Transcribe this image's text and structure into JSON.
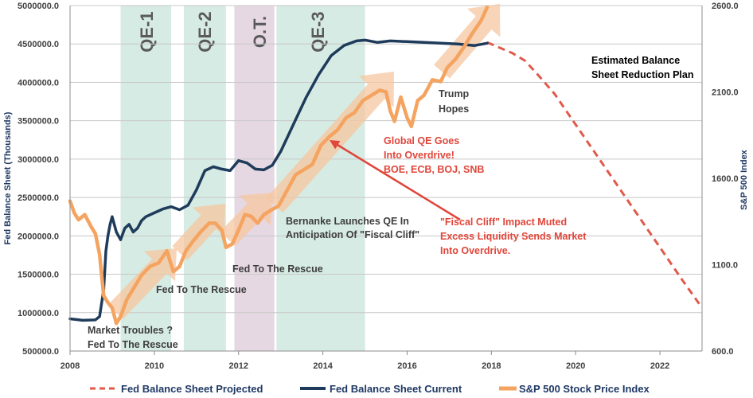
{
  "colors": {
    "projected": "#e05a4a",
    "current": "#1f3b5c",
    "sp500": "#f4a460",
    "band_qe": "#d6ebe3",
    "band_ot": "#e6d8e3",
    "arrow_fill": "#f5c7a0",
    "annotation_red": "#e0463a",
    "annotation_dark": "#3d3d3d",
    "axis_text": "#404040",
    "grid": "#c8c8c8"
  },
  "chart_data": {
    "type": "line",
    "title": "",
    "xlabel": "",
    "ylabel": "Fed Balance Sheet (Thousands)",
    "y2label": "S&P 500 Index",
    "xlim": [
      2008,
      2023
    ],
    "ylim": [
      500000,
      5000000
    ],
    "y2lim": [
      600,
      2600
    ],
    "x_ticks": [
      2008,
      2010,
      2012,
      2014,
      2016,
      2018,
      2020,
      2022
    ],
    "x_tick_labels": [
      "2008",
      "2010",
      "2012",
      "2014",
      "2016",
      "2018",
      "2020",
      "2022"
    ],
    "y_ticks": [
      500000,
      1000000,
      1500000,
      2000000,
      2500000,
      3000000,
      3500000,
      4000000,
      4500000,
      5000000
    ],
    "y_tick_labels": [
      "500000.0",
      "1000000.0",
      "1500000.0",
      "2000000.0",
      "2500000.0",
      "3000000.0",
      "3500000.0",
      "4000000.0",
      "4500000.0",
      "5000000.0"
    ],
    "y2_ticks": [
      600,
      1100,
      1600,
      2100,
      2600
    ],
    "y2_tick_labels": [
      "600.0",
      "1100.0",
      "1600.0",
      "2100.0",
      "2600.0"
    ],
    "bands": [
      {
        "label": "QE-1",
        "start": 2009.2,
        "end": 2010.4,
        "kind": "qe"
      },
      {
        "label": "QE-2",
        "start": 2010.7,
        "end": 2011.7,
        "kind": "qe"
      },
      {
        "label": "O.T.",
        "start": 2011.9,
        "end": 2012.85,
        "kind": "ot"
      },
      {
        "label": "QE-3",
        "start": 2012.9,
        "end": 2015.0,
        "kind": "qe"
      }
    ],
    "series": [
      {
        "name": "Fed Balance Sheet Projected",
        "axis": "left",
        "style": "dashed",
        "x": [
          2017.9,
          2018.2,
          2018.5,
          2018.8,
          2019.1,
          2019.5,
          2020.0,
          2020.5,
          2021.0,
          2021.5,
          2022.0,
          2022.5,
          2022.95
        ],
        "values": [
          4520000,
          4450000,
          4380000,
          4280000,
          4100000,
          3850000,
          3450000,
          3050000,
          2650000,
          2250000,
          1850000,
          1450000,
          1100000
        ]
      },
      {
        "name": "Fed Balance Sheet Current",
        "axis": "left",
        "style": "solid",
        "x": [
          2008.0,
          2008.3,
          2008.6,
          2008.7,
          2008.8,
          2008.85,
          2008.9,
          2008.95,
          2009.0,
          2009.1,
          2009.2,
          2009.3,
          2009.4,
          2009.5,
          2009.6,
          2009.7,
          2009.8,
          2010.0,
          2010.2,
          2010.4,
          2010.6,
          2010.8,
          2011.0,
          2011.2,
          2011.4,
          2011.6,
          2011.8,
          2012.0,
          2012.2,
          2012.4,
          2012.6,
          2012.8,
          2013.0,
          2013.3,
          2013.6,
          2013.9,
          2014.2,
          2014.5,
          2014.8,
          2015.0,
          2015.3,
          2015.6,
          2016.0,
          2016.4,
          2016.8,
          2017.2,
          2017.6,
          2017.9
        ],
        "values": [
          920000,
          900000,
          905000,
          950000,
          1300000,
          1800000,
          2000000,
          2150000,
          2250000,
          2050000,
          1950000,
          2100000,
          2150000,
          2050000,
          2100000,
          2200000,
          2250000,
          2300000,
          2350000,
          2380000,
          2340000,
          2400000,
          2600000,
          2850000,
          2900000,
          2870000,
          2850000,
          2980000,
          2950000,
          2870000,
          2860000,
          2920000,
          3100000,
          3450000,
          3800000,
          4100000,
          4350000,
          4480000,
          4540000,
          4550000,
          4520000,
          4540000,
          4530000,
          4520000,
          4510000,
          4500000,
          4480000,
          4510000
        ]
      },
      {
        "name": "S&P 500 Stock Price Index",
        "axis": "right",
        "style": "solid",
        "x": [
          2008.0,
          2008.1,
          2008.2,
          2008.35,
          2008.5,
          2008.6,
          2008.7,
          2008.8,
          2008.9,
          2009.0,
          2009.1,
          2009.2,
          2009.35,
          2009.5,
          2009.7,
          2009.9,
          2010.1,
          2010.3,
          2010.45,
          2010.6,
          2010.75,
          2010.9,
          2011.1,
          2011.3,
          2011.45,
          2011.6,
          2011.7,
          2011.85,
          2012.0,
          2012.15,
          2012.3,
          2012.45,
          2012.6,
          2012.8,
          2012.95,
          2013.15,
          2013.35,
          2013.55,
          2013.75,
          2013.95,
          2014.15,
          2014.35,
          2014.55,
          2014.75,
          2014.95,
          2015.15,
          2015.35,
          2015.5,
          2015.6,
          2015.7,
          2015.85,
          2016.0,
          2016.1,
          2016.25,
          2016.4,
          2016.6,
          2016.8,
          2016.95,
          2017.15,
          2017.35,
          2017.55,
          2017.75,
          2017.9
        ],
        "values": [
          1468,
          1400,
          1360,
          1390,
          1320,
          1280,
          1160,
          920,
          880,
          850,
          760,
          800,
          900,
          960,
          1040,
          1090,
          1110,
          1180,
          1060,
          1090,
          1180,
          1230,
          1290,
          1340,
          1340,
          1300,
          1200,
          1220,
          1300,
          1390,
          1380,
          1340,
          1390,
          1420,
          1440,
          1530,
          1620,
          1650,
          1680,
          1790,
          1840,
          1880,
          1950,
          1980,
          2050,
          2080,
          2110,
          2100,
          1990,
          1930,
          2070,
          1950,
          1900,
          2050,
          2080,
          2170,
          2160,
          2240,
          2290,
          2360,
          2440,
          2510,
          2590
        ]
      }
    ],
    "annotations": [
      {
        "text": "Market Troubles ?",
        "color": "dark"
      },
      {
        "text": "Fed To The Rescue",
        "color": "dark"
      },
      {
        "text": "Fed To The Rescue",
        "color": "dark"
      },
      {
        "text": "Fed To The Rescue",
        "color": "dark"
      },
      {
        "text": "Bernanke Launches QE In",
        "color": "dark"
      },
      {
        "text": "Anticipation Of \"Fiscal Cliff\"",
        "color": "dark"
      },
      {
        "text": "Trump",
        "color": "dark"
      },
      {
        "text": "Hopes",
        "color": "dark"
      },
      {
        "text": "Global QE Goes",
        "color": "red"
      },
      {
        "text": "Into Overdrive!",
        "color": "red"
      },
      {
        "text": "BOE, ECB, BOJ, SNB",
        "color": "red"
      },
      {
        "text": "\"Fiscal Cliff\" Impact Muted",
        "color": "red"
      },
      {
        "text": "Excess Liquidity Sends Market",
        "color": "red"
      },
      {
        "text": "Into Overdrive.",
        "color": "red"
      },
      {
        "text": "Estimated Balance",
        "color": "black"
      },
      {
        "text": "Sheet Reduction Plan",
        "color": "black"
      }
    ],
    "legend": [
      "Fed Balance Sheet Projected",
      "Fed Balance Sheet Current",
      "S&P 500 Stock Price Index"
    ],
    "legend_position": "bottom"
  }
}
